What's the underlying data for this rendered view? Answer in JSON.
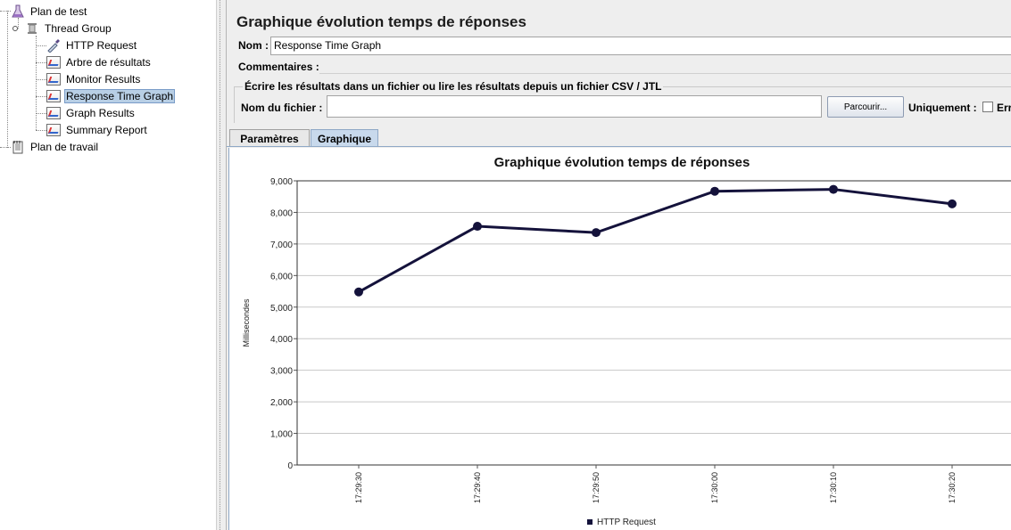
{
  "tree": {
    "items": [
      {
        "label": "Plan de test",
        "icon": "flask-icon"
      },
      {
        "label": "Thread Group",
        "icon": "spool-icon"
      },
      {
        "label": "HTTP Request",
        "icon": "pipette-icon"
      },
      {
        "label": "Arbre de résultats",
        "icon": "graph-icon"
      },
      {
        "label": "Monitor Results",
        "icon": "graph-icon"
      },
      {
        "label": "Response Time Graph",
        "icon": "graph-icon"
      },
      {
        "label": "Graph Results",
        "icon": "graph-icon"
      },
      {
        "label": "Summary Report",
        "icon": "graph-icon"
      },
      {
        "label": "Plan de travail",
        "icon": "notepad-icon"
      }
    ],
    "selected": "Response Time Graph"
  },
  "panel": {
    "title": "Graphique évolution temps de réponses",
    "name_label": "Nom :",
    "name_value": "Response Time Graph",
    "comments_label": "Commentaires :",
    "file_group_title": "Écrire les résultats dans un fichier ou lire les résultats depuis un fichier CSV / JTL",
    "filename_label": "Nom du fichier :",
    "filename_value": "",
    "browse_button": "Parcourir...",
    "only_label": "Uniquement :",
    "errors_label": "Err",
    "tabs": [
      "Paramètres",
      "Graphique"
    ],
    "active_tab": "Graphique"
  },
  "chart_data": {
    "type": "line",
    "title": "Graphique évolution temps de réponses",
    "xlabel": "",
    "ylabel": "Millisecondes",
    "ylim": [
      0,
      9000
    ],
    "yticks": [
      "0",
      "1,000",
      "2,000",
      "3,000",
      "4,000",
      "5,000",
      "6,000",
      "7,000",
      "8,000",
      "9,000"
    ],
    "categories": [
      "17:29:30",
      "17:29:40",
      "17:29:50",
      "17:30:00",
      "17:30:10",
      "17:30:20"
    ],
    "series": [
      {
        "name": "HTTP Request",
        "values": [
          5480,
          7560,
          7360,
          8670,
          8730,
          8270
        ],
        "color": "#14123b"
      }
    ],
    "grid": true,
    "legend": "bottom"
  }
}
